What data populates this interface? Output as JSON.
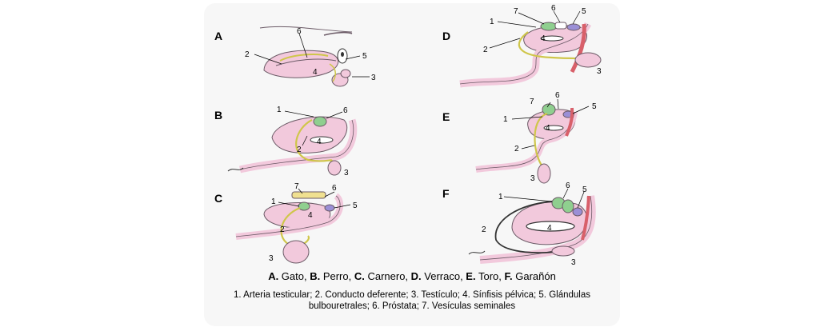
{
  "panels": [
    {
      "letter": "A",
      "labels": [
        "6",
        "2",
        "5",
        "4",
        "3"
      ]
    },
    {
      "letter": "B",
      "labels": [
        "1",
        "6",
        "4",
        "2",
        "3"
      ]
    },
    {
      "letter": "C",
      "labels": [
        "7",
        "6",
        "1",
        "4",
        "5",
        "2",
        "3"
      ]
    },
    {
      "letter": "D",
      "labels": [
        "7",
        "6",
        "5",
        "1",
        "4",
        "2",
        "3"
      ]
    },
    {
      "letter": "E",
      "labels": [
        "7",
        "6",
        "5",
        "1",
        "4",
        "2",
        "3"
      ]
    },
    {
      "letter": "F",
      "labels": [
        "1",
        "6",
        "5",
        "4",
        "2",
        "3"
      ]
    }
  ],
  "caption": {
    "items": [
      {
        "letter": "A.",
        "name": " Gato, "
      },
      {
        "letter": "B.",
        "name": " Perro, "
      },
      {
        "letter": "C.",
        "name": " Carnero, "
      },
      {
        "letter": "D.",
        "name": " Verraco, "
      },
      {
        "letter": "E.",
        "name": " Toro, "
      },
      {
        "letter": "F.",
        "name": " Garañón"
      }
    ],
    "legend_line1": "1. Arteria testicular; 2. Conducto deferente; 3. Testículo; 4. Sínfisis pélvica; 5. Glándulas",
    "legend_line2": "bulbouretrales; 6. Próstata; 7. Vesículas seminales"
  },
  "colors": {
    "body_pink": "#f2c9dc",
    "outline": "#6b5a66",
    "duct": "#e6e29a",
    "prostate": "#8fcf8f",
    "bulbourethral": "#9b8fd6",
    "artery": "#e06060",
    "vesicles": "#f0e090",
    "urethra_red": "#d8606a"
  }
}
